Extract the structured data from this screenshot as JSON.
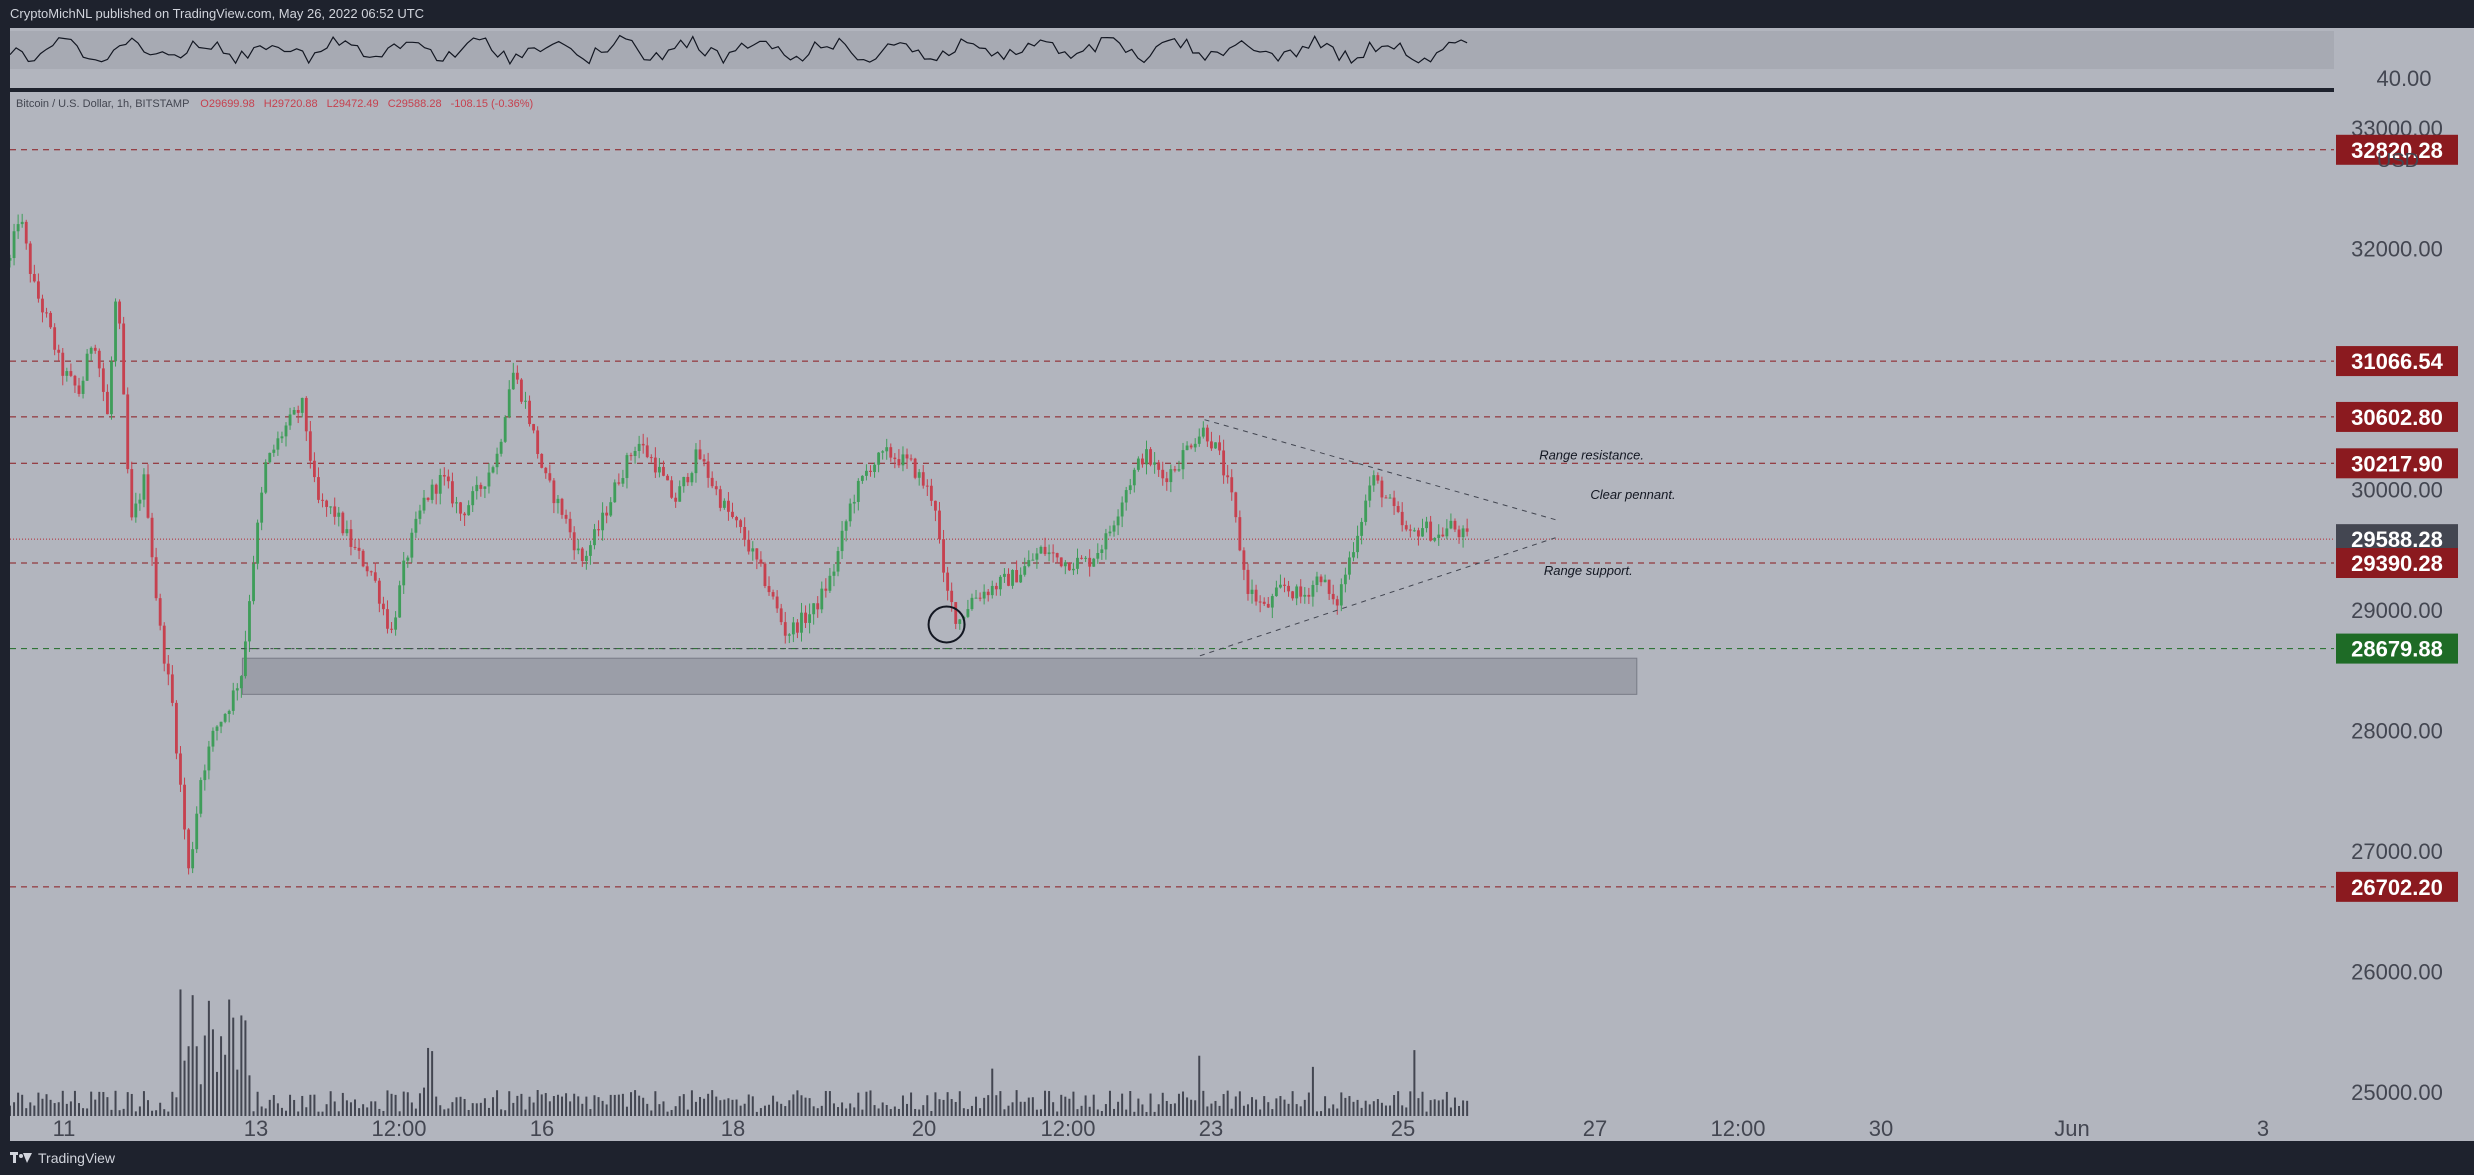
{
  "header": {
    "publisher_text": "CryptoMichNL published on TradingView.com, May 26, 2022 06:52 UTC"
  },
  "footer": {
    "brand": "TradingView",
    "brand_icon": "tradingview-logo-icon"
  },
  "colors": {
    "background": "#b2b5be",
    "dark_frame": "#1e222d",
    "bull": "#3f9d5a",
    "bear": "#c6414f",
    "resistance_label": "#8b1a1f",
    "support_label": "#1e6b26",
    "current_label": "#434651"
  },
  "chart_data": {
    "type": "candlestick",
    "symbol_line": {
      "name": "Bitcoin / U.S. Dollar, 1h, BITSTAMP",
      "open": "O29699.98",
      "high": "H29720.88",
      "low": "L29472.49",
      "close": "C29588.28",
      "change": "-108.15 (-0.36%)"
    },
    "currency": "USD",
    "ylim": [
      24800,
      33300
    ],
    "y_ticks": [
      "33000.00",
      "32000.00",
      "30000.00",
      "29000.00",
      "28000.00",
      "27000.00",
      "26000.00",
      "25000.00"
    ],
    "x_ticks": [
      "11",
      "13",
      "12:00",
      "16",
      "18",
      "20",
      "12:00",
      "23",
      "25",
      "27",
      "12:00",
      "30",
      "Jun",
      "3"
    ],
    "oscillator": {
      "label": "40.00"
    },
    "price_levels": [
      {
        "value": 32820.28,
        "label": "32820.28",
        "kind": "resistance"
      },
      {
        "value": 31066.54,
        "label": "31066.54",
        "kind": "resistance"
      },
      {
        "value": 30602.8,
        "label": "30602.80",
        "kind": "resistance"
      },
      {
        "value": 30217.9,
        "label": "30217.90",
        "kind": "resistance"
      },
      {
        "value": 29588.28,
        "label": "29588.28",
        "kind": "current"
      },
      {
        "value": 29390.28,
        "label": "29390.28",
        "kind": "resistance"
      },
      {
        "value": 28679.88,
        "label": "28679.88",
        "kind": "support"
      },
      {
        "value": 26702.2,
        "label": "26702.20",
        "kind": "resistance"
      }
    ],
    "annotations": [
      {
        "text": "Range resistance.",
        "price": 30250,
        "t": 0.658
      },
      {
        "text": "Clear pennant.",
        "price": 29920,
        "t": 0.68
      },
      {
        "text": "Range support.",
        "price": 29290,
        "t": 0.66
      }
    ],
    "demand_zone": {
      "price_top": 28600,
      "price_bottom": 28300
    },
    "price_path": [
      [
        0.0,
        31900
      ],
      [
        0.004,
        32300
      ],
      [
        0.01,
        31700
      ],
      [
        0.016,
        31400
      ],
      [
        0.022,
        31000
      ],
      [
        0.03,
        30800
      ],
      [
        0.036,
        31300
      ],
      [
        0.042,
        30600
      ],
      [
        0.046,
        31700
      ],
      [
        0.052,
        29700
      ],
      [
        0.058,
        30100
      ],
      [
        0.064,
        28900
      ],
      [
        0.07,
        28200
      ],
      [
        0.074,
        27400
      ],
      [
        0.077,
        26800
      ],
      [
        0.082,
        27600
      ],
      [
        0.088,
        28000
      ],
      [
        0.094,
        28200
      ],
      [
        0.1,
        28500
      ],
      [
        0.104,
        29300
      ],
      [
        0.11,
        30200
      ],
      [
        0.118,
        30500
      ],
      [
        0.126,
        30700
      ],
      [
        0.132,
        29900
      ],
      [
        0.14,
        29800
      ],
      [
        0.148,
        29500
      ],
      [
        0.156,
        29300
      ],
      [
        0.164,
        28800
      ],
      [
        0.17,
        29400
      ],
      [
        0.178,
        29900
      ],
      [
        0.186,
        30100
      ],
      [
        0.194,
        29800
      ],
      [
        0.202,
        30000
      ],
      [
        0.21,
        30300
      ],
      [
        0.216,
        31000
      ],
      [
        0.222,
        30700
      ],
      [
        0.23,
        30100
      ],
      [
        0.238,
        29800
      ],
      [
        0.246,
        29400
      ],
      [
        0.254,
        29700
      ],
      [
        0.262,
        30100
      ],
      [
        0.27,
        30400
      ],
      [
        0.278,
        30200
      ],
      [
        0.286,
        29900
      ],
      [
        0.296,
        30300
      ],
      [
        0.306,
        29900
      ],
      [
        0.316,
        29600
      ],
      [
        0.326,
        29200
      ],
      [
        0.334,
        28800
      ],
      [
        0.34,
        28900
      ],
      [
        0.346,
        29000
      ],
      [
        0.354,
        29300
      ],
      [
        0.362,
        29900
      ],
      [
        0.37,
        30200
      ],
      [
        0.378,
        30300
      ],
      [
        0.388,
        30200
      ],
      [
        0.398,
        29900
      ],
      [
        0.402,
        29200
      ],
      [
        0.408,
        28900
      ],
      [
        0.414,
        29100
      ],
      [
        0.424,
        29200
      ],
      [
        0.434,
        29300
      ],
      [
        0.444,
        29500
      ],
      [
        0.454,
        29400
      ],
      [
        0.464,
        29400
      ],
      [
        0.472,
        29600
      ],
      [
        0.48,
        30000
      ],
      [
        0.488,
        30300
      ],
      [
        0.496,
        30100
      ],
      [
        0.502,
        30200
      ],
      [
        0.508,
        30400
      ],
      [
        0.514,
        30500
      ],
      [
        0.52,
        30300
      ],
      [
        0.526,
        29900
      ],
      [
        0.532,
        29200
      ],
      [
        0.54,
        29000
      ],
      [
        0.548,
        29200
      ],
      [
        0.556,
        29100
      ],
      [
        0.564,
        29300
      ],
      [
        0.57,
        29000
      ],
      [
        0.576,
        29400
      ],
      [
        0.582,
        29800
      ],
      [
        0.586,
        30100
      ],
      [
        0.59,
        30000
      ],
      [
        0.596,
        29800
      ],
      [
        0.602,
        29600
      ],
      [
        0.608,
        29700
      ],
      [
        0.614,
        29600
      ],
      [
        0.62,
        29700
      ],
      [
        0.627,
        29588
      ]
    ]
  }
}
